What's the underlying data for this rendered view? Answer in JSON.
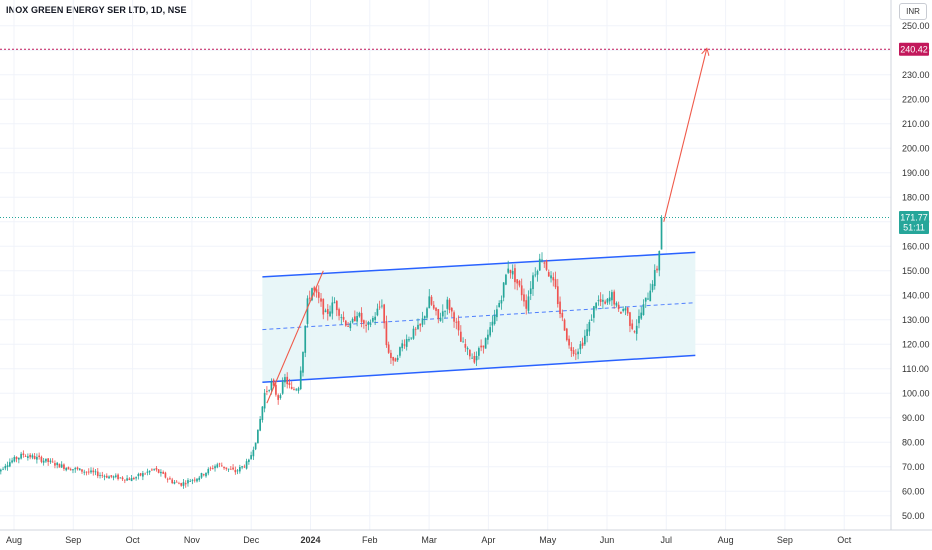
{
  "header": {
    "symbol_title": "INOX GREEN ENERGY SER LTD, 1D, NSE",
    "currency": "INR"
  },
  "chart_data": {
    "type": "candlestick",
    "y_axis": {
      "ticks": [
        "250.00",
        "240.00",
        "230.00",
        "220.00",
        "210.00",
        "200.00",
        "190.00",
        "180.00",
        "170.00",
        "160.00",
        "150.00",
        "140.00",
        "130.00",
        "120.00",
        "110.00",
        "100.00",
        "90.00",
        "80.00",
        "70.00",
        "60.00",
        "50.00"
      ],
      "ylim": [
        46,
        256
      ]
    },
    "x_axis": {
      "ticks": [
        {
          "label": "Aug",
          "bold": false
        },
        {
          "label": "Sep",
          "bold": false
        },
        {
          "label": "Oct",
          "bold": false
        },
        {
          "label": "Nov",
          "bold": false
        },
        {
          "label": "Dec",
          "bold": false
        },
        {
          "label": "2024",
          "bold": true
        },
        {
          "label": "Feb",
          "bold": false
        },
        {
          "label": "Mar",
          "bold": false
        },
        {
          "label": "Apr",
          "bold": false
        },
        {
          "label": "May",
          "bold": false
        },
        {
          "label": "Jun",
          "bold": false
        },
        {
          "label": "Jul",
          "bold": false
        },
        {
          "label": "Aug",
          "bold": false
        },
        {
          "label": "Sep",
          "bold": false
        },
        {
          "label": "Oct",
          "bold": false
        }
      ]
    },
    "colors": {
      "up": "#26a69a",
      "down": "#ef5350",
      "channel_line": "#2962ff",
      "channel_fill": "#e6f5f7",
      "target_arrow": "#f05a4a",
      "target_line": "#c2185b",
      "price_line": "#26a69a",
      "grid": "#f0f3fa"
    },
    "anchors": [
      [
        0,
        67
      ],
      [
        4,
        71
      ],
      [
        12,
        75
      ],
      [
        20,
        73
      ],
      [
        30,
        70
      ],
      [
        40,
        68
      ],
      [
        50,
        66
      ],
      [
        60,
        65
      ],
      [
        70,
        69
      ],
      [
        78,
        64
      ],
      [
        82,
        63
      ],
      [
        90,
        66
      ],
      [
        98,
        71
      ],
      [
        106,
        68
      ],
      [
        112,
        72
      ],
      [
        116,
        84
      ],
      [
        119,
        100
      ],
      [
        122,
        104
      ],
      [
        125,
        98
      ],
      [
        128,
        106
      ],
      [
        131,
        101
      ],
      [
        134,
        103
      ],
      [
        136,
        118
      ],
      [
        138,
        137
      ],
      [
        140,
        143
      ],
      [
        143,
        138
      ],
      [
        146,
        132
      ],
      [
        150,
        137
      ],
      [
        154,
        130
      ],
      [
        157,
        127
      ],
      [
        160,
        133
      ],
      [
        164,
        126
      ],
      [
        168,
        132
      ],
      [
        171,
        137
      ],
      [
        173,
        120
      ],
      [
        176,
        112
      ],
      [
        180,
        120
      ],
      [
        184,
        124
      ],
      [
        188,
        127
      ],
      [
        192,
        138
      ],
      [
        196,
        130
      ],
      [
        200,
        137
      ],
      [
        203,
        131
      ],
      [
        206,
        121
      ],
      [
        209,
        117
      ],
      [
        212,
        114
      ],
      [
        215,
        119
      ],
      [
        218,
        123
      ],
      [
        221,
        131
      ],
      [
        224,
        140
      ],
      [
        227,
        152
      ],
      [
        230,
        147
      ],
      [
        233,
        141
      ],
      [
        235,
        136
      ],
      [
        238,
        148
      ],
      [
        242,
        156
      ],
      [
        245,
        149
      ],
      [
        248,
        142
      ],
      [
        250,
        133
      ],
      [
        252,
        127
      ],
      [
        254,
        119
      ],
      [
        257,
        117
      ],
      [
        260,
        121
      ],
      [
        263,
        128
      ],
      [
        266,
        138
      ],
      [
        270,
        136
      ],
      [
        273,
        140
      ],
      [
        276,
        133
      ],
      [
        279,
        135
      ],
      [
        281,
        129
      ],
      [
        283,
        126
      ],
      [
        286,
        133
      ],
      [
        289,
        140
      ],
      [
        291,
        146
      ],
      [
        293,
        151
      ],
      [
        294,
        159
      ],
      [
        295,
        172
      ]
    ],
    "channel": {
      "upper": [
        {
          "day": 118,
          "price": 147.5
        },
        {
          "day": 310,
          "price": 157.5
        }
      ],
      "lower": [
        {
          "day": 118,
          "price": 104.5
        },
        {
          "day": 310,
          "price": 115.5
        }
      ],
      "mid": [
        {
          "day": 118,
          "price": 126.0
        },
        {
          "day": 310,
          "price": 137.0
        }
      ]
    },
    "flagpole_arrow": [
      {
        "day": 120,
        "price": 96
      },
      {
        "day": 145,
        "price": 150
      }
    ],
    "target_arrow": [
      {
        "day": 296,
        "price": 170
      },
      {
        "day": 315,
        "price": 240.42
      }
    ],
    "last_price": "171.77",
    "countdown": "51:11",
    "target_price": "240.42"
  }
}
